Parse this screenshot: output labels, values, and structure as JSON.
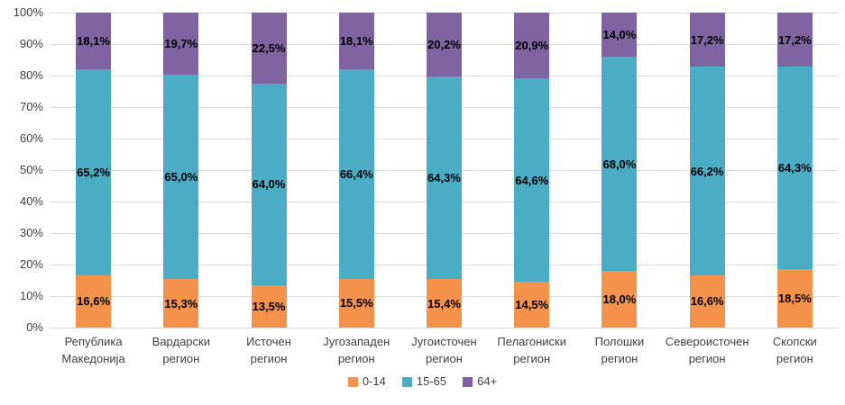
{
  "chart_data": {
    "type": "bar",
    "subtype": "stacked-100-percent-column",
    "title": "",
    "xlabel": "",
    "ylabel": "",
    "categories": [
      "Република Македонија",
      "Вардарски регион",
      "Источен регион",
      "Југозападен регион",
      "Југоисточен регион",
      "Пелагониски регион",
      "Полошки регион",
      "Североисточен регион",
      "Скопски регион"
    ],
    "series": [
      {
        "name": "0-14",
        "color": "#F4914B",
        "values": [
          16.6,
          15.3,
          13.5,
          15.5,
          15.4,
          14.5,
          18.0,
          16.6,
          18.5
        ],
        "labels": [
          "16,6%",
          "15,3%",
          "13,5%",
          "15,5%",
          "15,4%",
          "14,5%",
          "18,0%",
          "16,6%",
          "18,5%"
        ]
      },
      {
        "name": "15-65",
        "color": "#4BACC6",
        "values": [
          65.2,
          65.0,
          64.0,
          66.4,
          64.3,
          64.6,
          68.0,
          66.2,
          64.3
        ],
        "labels": [
          "65,2%",
          "65,0%",
          "64,0%",
          "66,4%",
          "64,3%",
          "64,6%",
          "68,0%",
          "66,2%",
          "64,3%"
        ]
      },
      {
        "name": "64+",
        "color": "#8064A2",
        "values": [
          18.1,
          19.7,
          22.5,
          18.1,
          20.2,
          20.9,
          14.0,
          17.2,
          17.2
        ],
        "labels": [
          "18,1%",
          "19,7%",
          "22,5%",
          "18,1%",
          "20,2%",
          "20,9%",
          "14,0%",
          "17,2%",
          "17,2%"
        ]
      }
    ],
    "y_axis": {
      "min": 0,
      "max": 100,
      "step": 10,
      "ticks": [
        "0%",
        "10%",
        "20%",
        "30%",
        "40%",
        "50%",
        "60%",
        "70%",
        "80%",
        "90%",
        "100%"
      ]
    },
    "grid": true,
    "legend": {
      "position": "bottom",
      "items": [
        "0-14",
        "15-65",
        "64+"
      ]
    },
    "colors": {
      "grid": "#D9D9D9",
      "axis_text": "#3F3F3F",
      "data_label": "#000000",
      "background": "#FFFFFF"
    }
  }
}
